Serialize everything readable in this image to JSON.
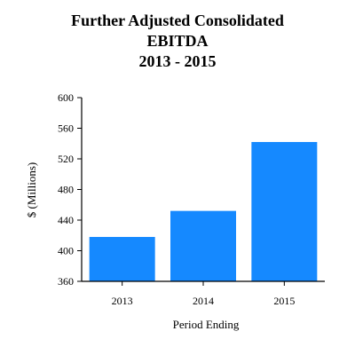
{
  "chart_data": {
    "type": "bar",
    "title_lines": [
      "Further Adjusted Consolidated",
      "EBITDA",
      "2013 - 2015"
    ],
    "categories": [
      "2013",
      "2014",
      "2015"
    ],
    "values": [
      418,
      452,
      542
    ],
    "xlabel": "Period Ending",
    "ylabel": "$ (Millions)",
    "ylim": [
      360,
      600
    ],
    "yticks": [
      360,
      400,
      440,
      480,
      520,
      560,
      600
    ],
    "ytick_labels": [
      "360",
      "400",
      "440",
      "480",
      "520",
      "560",
      "600"
    ],
    "bar_color": "#1589FF",
    "grid": false,
    "legend": "none"
  }
}
